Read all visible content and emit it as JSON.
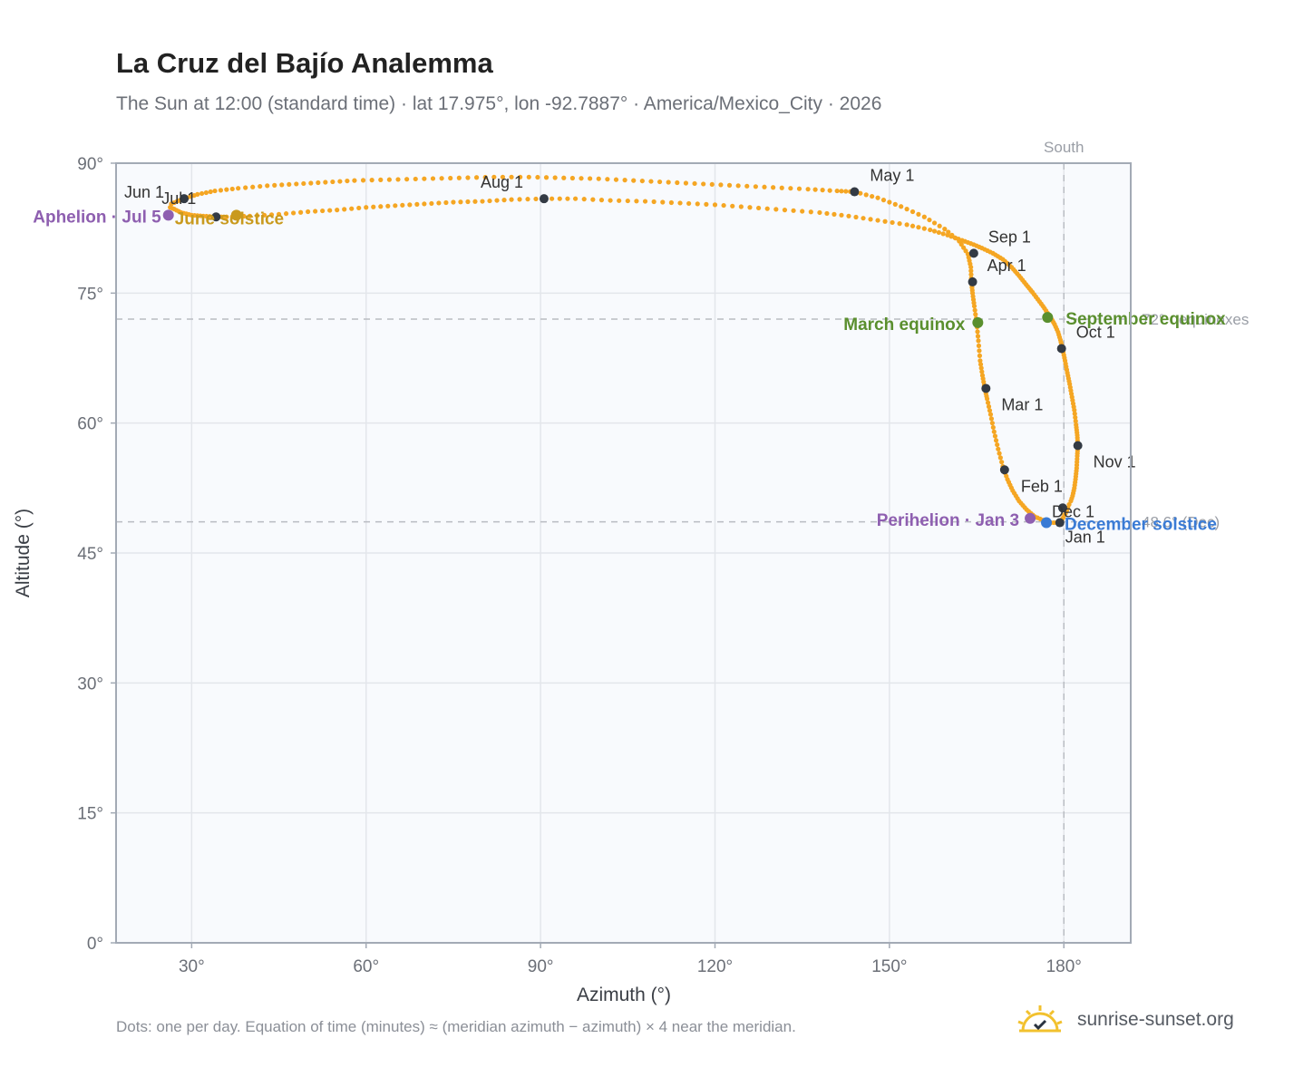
{
  "title": "La Cruz del Bajío Analemma",
  "subtitle": "The Sun at 12:00 (standard time) · lat 17.975°, lon -92.7887° · America/Mexico_City · 2026",
  "footnote": "Dots: one per day. Equation of time (minutes) ≈ (meridian azimuth − azimuth) × 4 near the meridian.",
  "brand": {
    "name": "sunrise-sunset.org",
    "icon": "sun-logo-icon"
  },
  "colors": {
    "path": "#f5a623",
    "marker": "#333a44",
    "equinox": "#5a8f2e",
    "solstice_dec": "#3a7bd5",
    "solstice_jun": "#c99a1e",
    "apsis": "#8e5fb0",
    "ref": "#b9bcc2",
    "plot_bg": "#f8fafd",
    "frame": "#a3aab5"
  },
  "chart_data": {
    "type": "scatter",
    "xlabel": "Azimuth (°)",
    "ylabel": "Altitude (°)",
    "xlim": [
      17,
      191.5
    ],
    "ylim": [
      0,
      90
    ],
    "x_ticks": [
      30,
      60,
      90,
      120,
      150,
      180
    ],
    "x_tick_labels": [
      "30°",
      "60°",
      "90°",
      "120°",
      "150°",
      "180°"
    ],
    "y_ticks": [
      0,
      15,
      30,
      45,
      60,
      75,
      90
    ],
    "y_tick_labels": [
      "0°",
      "15°",
      "30°",
      "45°",
      "60°",
      "75°",
      "90°"
    ],
    "grid": true,
    "series": [
      {
        "comment_free": true,
        "points": [
          [
            179.3,
            48.5
          ],
          [
            179.4,
            48.6
          ],
          [
            179.5,
            48.8
          ],
          [
            179.7,
            48.9
          ],
          [
            179.9,
            49.1
          ],
          [
            180.1,
            49.4
          ],
          [
            180.3,
            49.6
          ],
          [
            180.5,
            49.9
          ],
          [
            180.7,
            50.2
          ],
          [
            180.9,
            50.6
          ],
          [
            181.2,
            51.0
          ],
          [
            181.5,
            51.6
          ],
          [
            181.8,
            52.5
          ],
          [
            182.0,
            53.5
          ],
          [
            182.2,
            54.8
          ],
          [
            182.3,
            56.2
          ],
          [
            182.4,
            57.4
          ],
          [
            182.3,
            58.6
          ],
          [
            182.1,
            59.8
          ],
          [
            181.8,
            61.5
          ],
          [
            181.4,
            63.0
          ],
          [
            181.0,
            64.5
          ],
          [
            180.6,
            65.8
          ],
          [
            180.2,
            67.2
          ],
          [
            179.8,
            68.5
          ],
          [
            179.4,
            69.6
          ],
          [
            179.0,
            70.5
          ],
          [
            178.4,
            71.4
          ],
          [
            177.8,
            72.1
          ],
          [
            177.2,
            72.7
          ],
          [
            176.4,
            73.5
          ],
          [
            175.5,
            74.3
          ],
          [
            174.6,
            75.1
          ],
          [
            173.5,
            76.0
          ],
          [
            172.3,
            77.0
          ],
          [
            171.0,
            78.0
          ],
          [
            169.5,
            78.9
          ],
          [
            167.8,
            79.6
          ],
          [
            165.9,
            80.2
          ],
          [
            164.5,
            80.6
          ],
          [
            162.5,
            81.1
          ],
          [
            160.0,
            81.7
          ],
          [
            157.0,
            82.3
          ],
          [
            153.0,
            82.9
          ],
          [
            148.0,
            83.4
          ],
          [
            143.0,
            83.9
          ],
          [
            138.0,
            84.3
          ],
          [
            132.0,
            84.6
          ],
          [
            126.0,
            84.9
          ],
          [
            120.0,
            85.2
          ],
          [
            114.0,
            85.4
          ],
          [
            108.0,
            85.6
          ],
          [
            102.0,
            85.7
          ],
          [
            96.0,
            85.9
          ],
          [
            90.6,
            85.9
          ],
          [
            85.0,
            85.8
          ],
          [
            80.0,
            85.6
          ],
          [
            75.0,
            85.5
          ],
          [
            70.0,
            85.3
          ],
          [
            65.0,
            85.1
          ],
          [
            60.0,
            84.9
          ],
          [
            55.0,
            84.6
          ],
          [
            50.0,
            84.4
          ],
          [
            45.0,
            84.1
          ],
          [
            40.0,
            83.9
          ],
          [
            36.0,
            83.8
          ],
          [
            34.2,
            83.8
          ],
          [
            32.0,
            83.9
          ],
          [
            30.0,
            84.0
          ],
          [
            28.2,
            84.3
          ],
          [
            27.0,
            84.7
          ],
          [
            26.3,
            84.9
          ],
          [
            26.5,
            85.3
          ],
          [
            27.5,
            85.6
          ],
          [
            28.7,
            85.9
          ],
          [
            31.0,
            86.4
          ],
          [
            34.0,
            86.8
          ],
          [
            38.0,
            87.1
          ],
          [
            43.0,
            87.4
          ],
          [
            48.0,
            87.6
          ],
          [
            53.0,
            87.8
          ],
          [
            58.0,
            88.0
          ],
          [
            64.0,
            88.1
          ],
          [
            70.0,
            88.2
          ],
          [
            76.0,
            88.3
          ],
          [
            82.0,
            88.4
          ],
          [
            88.0,
            88.4
          ],
          [
            94.0,
            88.3
          ],
          [
            100.0,
            88.2
          ],
          [
            106.0,
            88.0
          ],
          [
            112.0,
            87.8
          ],
          [
            118.0,
            87.6
          ],
          [
            124.0,
            87.4
          ],
          [
            130.0,
            87.2
          ],
          [
            136.0,
            87.0
          ],
          [
            141.0,
            86.8
          ],
          [
            144.0,
            86.7
          ],
          [
            148.0,
            86.0
          ],
          [
            152.0,
            85.0
          ],
          [
            156.0,
            83.8
          ],
          [
            159.5,
            82.4
          ],
          [
            162.0,
            81.0
          ],
          [
            163.5,
            79.5
          ],
          [
            164.0,
            78.0
          ],
          [
            164.1,
            76.3
          ],
          [
            164.3,
            75.0
          ],
          [
            164.6,
            73.5
          ],
          [
            165.0,
            71.6
          ],
          [
            165.3,
            69.5
          ],
          [
            165.6,
            67.2
          ],
          [
            166.0,
            65.5
          ],
          [
            166.4,
            64.0
          ],
          [
            166.8,
            62.8
          ],
          [
            167.4,
            61.0
          ],
          [
            168.0,
            59.0
          ],
          [
            168.7,
            57.0
          ],
          [
            169.5,
            55.0
          ],
          [
            170.3,
            53.5
          ],
          [
            171.2,
            52.2
          ],
          [
            172.3,
            51.0
          ],
          [
            173.6,
            50.0
          ],
          [
            175.0,
            49.2
          ],
          [
            176.4,
            48.8
          ],
          [
            177.8,
            48.5
          ],
          [
            179.3,
            48.5
          ]
        ]
      }
    ],
    "month_markers": [
      {
        "label": "Jan 1",
        "az": 179.3,
        "alt": 48.5
      },
      {
        "label": "Feb 1",
        "az": 169.8,
        "alt": 54.6
      },
      {
        "label": "Mar 1",
        "az": 166.6,
        "alt": 64.0
      },
      {
        "label": "Apr 1",
        "az": 164.3,
        "alt": 76.3
      },
      {
        "label": "May 1",
        "az": 144.0,
        "alt": 86.7
      },
      {
        "label": "Jun 1",
        "az": 28.7,
        "alt": 85.9
      },
      {
        "label": "Jul 1",
        "az": 34.2,
        "alt": 83.8
      },
      {
        "label": "Aug 1",
        "az": 90.6,
        "alt": 85.9
      },
      {
        "label": "Sep 1",
        "az": 164.5,
        "alt": 79.6
      },
      {
        "label": "Oct 1",
        "az": 179.6,
        "alt": 68.6
      },
      {
        "label": "Nov 1",
        "az": 182.4,
        "alt": 57.4
      },
      {
        "label": "Dec 1",
        "az": 179.8,
        "alt": 50.2
      }
    ],
    "events": [
      {
        "label": "March equinox",
        "az": 165.2,
        "alt": 71.6,
        "color": "#5a8f2e"
      },
      {
        "label": "September equinox",
        "az": 177.2,
        "alt": 72.2,
        "color": "#5a8f2e"
      },
      {
        "label": "December solstice",
        "az": 177.0,
        "alt": 48.5,
        "color": "#3a7bd5"
      },
      {
        "label": "June solstice",
        "az": 37.7,
        "alt": 84.0,
        "color": "#c99a1e"
      },
      {
        "label": "Perihelion · Jan 3",
        "az": 174.2,
        "alt": 49.0,
        "color": "#8e5fb0"
      },
      {
        "label": "Aphelion · Jul 5",
        "az": 26.0,
        "alt": 84.0,
        "color": "#8e5fb0"
      }
    ],
    "reference_lines": [
      {
        "axis": "y",
        "value": 72.0,
        "label": "72° · equinoxes"
      },
      {
        "axis": "y",
        "value": 48.6,
        "label": "48.6° (Dec)"
      },
      {
        "axis": "x",
        "value": 180,
        "label": "South"
      }
    ]
  }
}
